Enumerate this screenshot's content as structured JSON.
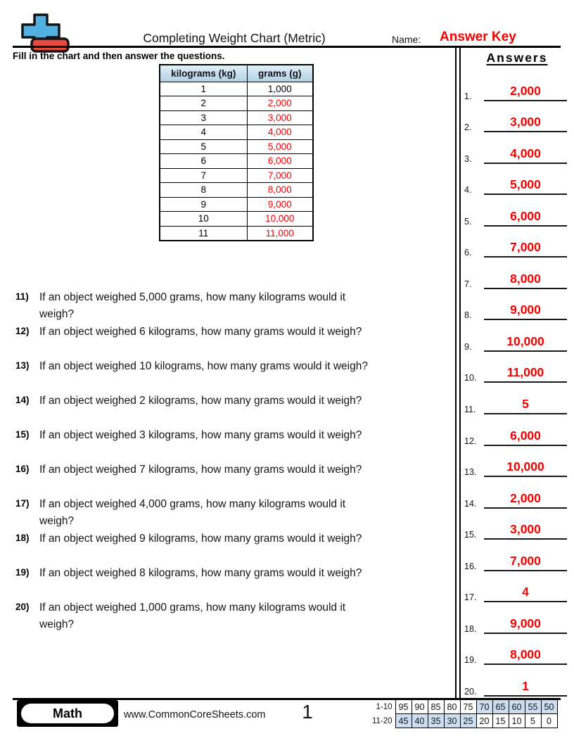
{
  "header": {
    "title": "Completing Weight Chart (Metric)",
    "name_label": "Name:",
    "name_value": "Answer Key"
  },
  "instruction": "Fill in the chart and then answer the questions.",
  "colors": {
    "answer_red": "#f40000",
    "table_header_blue": "#b2d3e4",
    "score_shade_blue": "#ccdff2",
    "logo_blue": "#53b1e2",
    "logo_red": "#e8493f"
  },
  "table": {
    "headers": [
      "kilograms (kg)",
      "grams (g)"
    ],
    "rows": [
      {
        "kg": "1",
        "g": "1,000",
        "red": false
      },
      {
        "kg": "2",
        "g": "2,000",
        "red": true
      },
      {
        "kg": "3",
        "g": "3,000",
        "red": true
      },
      {
        "kg": "4",
        "g": "4,000",
        "red": true
      },
      {
        "kg": "5",
        "g": "5,000",
        "red": true
      },
      {
        "kg": "6",
        "g": "6,000",
        "red": true
      },
      {
        "kg": "7",
        "g": "7,000",
        "red": true
      },
      {
        "kg": "8",
        "g": "8,000",
        "red": true
      },
      {
        "kg": "9",
        "g": "9,000",
        "red": true
      },
      {
        "kg": "10",
        "g": "10,000",
        "red": true
      },
      {
        "kg": "11",
        "g": "11,000",
        "red": true
      }
    ]
  },
  "questions": [
    {
      "num": "11)",
      "lines": [
        "If an object weighed 5,000 grams, how many kilograms would it",
        "weigh?"
      ]
    },
    {
      "num": "12)",
      "lines": [
        "If an object weighed 6 kilograms, how many grams would it weigh?"
      ]
    },
    {
      "num": "13)",
      "lines": [
        "If an object weighed 10 kilograms, how many grams would it weigh?"
      ]
    },
    {
      "num": "14)",
      "lines": [
        "If an object weighed 2 kilograms, how many grams would it weigh?"
      ]
    },
    {
      "num": "15)",
      "lines": [
        "If an object weighed 3 kilograms, how many grams would it weigh?"
      ]
    },
    {
      "num": "16)",
      "lines": [
        "If an object weighed 7 kilograms, how many grams would it weigh?"
      ]
    },
    {
      "num": "17)",
      "lines": [
        "If an object weighed 4,000 grams, how many kilograms would it",
        "weigh?"
      ]
    },
    {
      "num": "18)",
      "lines": [
        "If an object weighed 9 kilograms, how many grams would it weigh?"
      ]
    },
    {
      "num": "19)",
      "lines": [
        "If an object weighed 8 kilograms, how many grams would it weigh?"
      ]
    },
    {
      "num": "20)",
      "lines": [
        "If an object weighed 1,000 grams, how many kilograms would it",
        "weigh?"
      ]
    }
  ],
  "answers": {
    "title": "Answers",
    "items": [
      {
        "num": "1.",
        "value": "2,000"
      },
      {
        "num": "2.",
        "value": "3,000"
      },
      {
        "num": "3.",
        "value": "4,000"
      },
      {
        "num": "4.",
        "value": "5,000"
      },
      {
        "num": "5.",
        "value": "6,000"
      },
      {
        "num": "6.",
        "value": "7,000"
      },
      {
        "num": "7.",
        "value": "8,000"
      },
      {
        "num": "8.",
        "value": "9,000"
      },
      {
        "num": "9.",
        "value": "10,000"
      },
      {
        "num": "10.",
        "value": "11,000"
      },
      {
        "num": "11.",
        "value": "5"
      },
      {
        "num": "12.",
        "value": "6,000"
      },
      {
        "num": "13.",
        "value": "10,000"
      },
      {
        "num": "14.",
        "value": "2,000"
      },
      {
        "num": "15.",
        "value": "3,000"
      },
      {
        "num": "16.",
        "value": "7,000"
      },
      {
        "num": "17.",
        "value": "4"
      },
      {
        "num": "18.",
        "value": "9,000"
      },
      {
        "num": "19.",
        "value": "8,000"
      },
      {
        "num": "20.",
        "value": "1"
      }
    ]
  },
  "footer": {
    "subject": "Math",
    "website": "www.CommonCoreSheets.com",
    "page": "1",
    "score_grid": {
      "rows": [
        {
          "label": "1-10",
          "cells": [
            {
              "v": "95",
              "s": false
            },
            {
              "v": "90",
              "s": false
            },
            {
              "v": "85",
              "s": false
            },
            {
              "v": "80",
              "s": false
            },
            {
              "v": "75",
              "s": false
            },
            {
              "v": "70",
              "s": true
            },
            {
              "v": "65",
              "s": true
            },
            {
              "v": "60",
              "s": true
            },
            {
              "v": "55",
              "s": true
            },
            {
              "v": "50",
              "s": true
            }
          ]
        },
        {
          "label": "11-20",
          "cells": [
            {
              "v": "45",
              "s": true
            },
            {
              "v": "40",
              "s": true
            },
            {
              "v": "35",
              "s": true
            },
            {
              "v": "30",
              "s": true
            },
            {
              "v": "25",
              "s": true
            },
            {
              "v": "20",
              "s": false
            },
            {
              "v": "15",
              "s": false
            },
            {
              "v": "10",
              "s": false
            },
            {
              "v": "5",
              "s": false
            },
            {
              "v": "0",
              "s": false
            }
          ]
        }
      ]
    }
  }
}
